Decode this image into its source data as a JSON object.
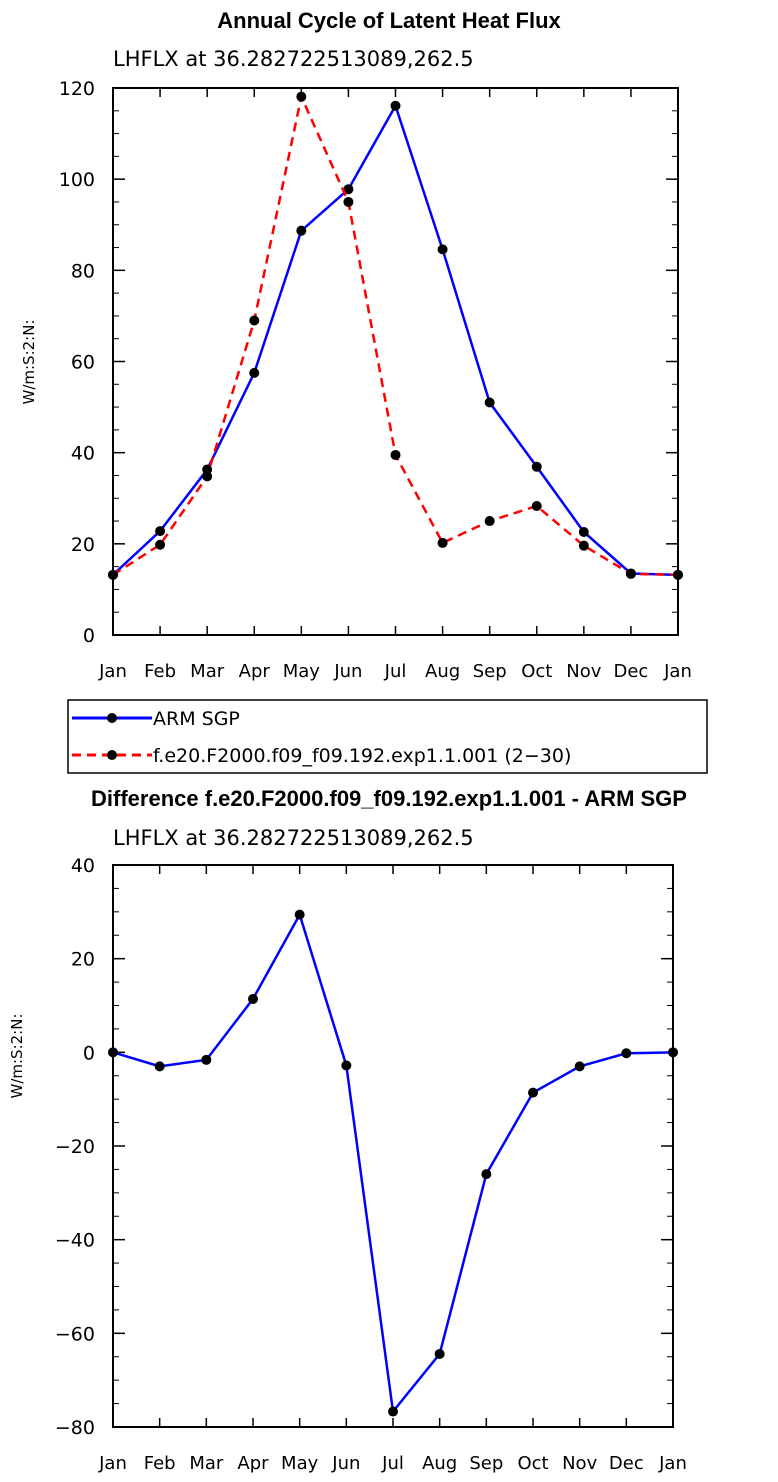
{
  "chart_data": [
    {
      "type": "line",
      "title": "Annual Cycle of Latent Heat Flux",
      "subtitle": "LHFLX at 36.282722513089,262.5",
      "xlabel": "",
      "ylabel": "W/m:S:2:N:",
      "categories": [
        "Jan",
        "Feb",
        "Mar",
        "Apr",
        "May",
        "Jun",
        "Jul",
        "Aug",
        "Sep",
        "Oct",
        "Nov",
        "Dec",
        "Jan"
      ],
      "ylim": [
        0,
        120
      ],
      "yticks": [
        0,
        20,
        40,
        60,
        80,
        100,
        120
      ],
      "legend_position": "bottom-left",
      "series": [
        {
          "name": "ARM SGP",
          "color": "#0000ff",
          "dash": "solid",
          "values": [
            13.2,
            22.8,
            36.3,
            57.5,
            88.7,
            97.8,
            116.1,
            84.6,
            51.0,
            36.9,
            22.6,
            13.5,
            13.2
          ]
        },
        {
          "name": "f.e20.F2000.f09_f09.192.exp1.1.001 (2−30)",
          "color": "#ff0000",
          "dash": "dashed",
          "values": [
            13.2,
            19.8,
            34.8,
            69.0,
            118.1,
            95.0,
            39.5,
            20.2,
            25.0,
            28.3,
            19.6,
            13.4,
            13.2
          ]
        }
      ]
    },
    {
      "type": "line",
      "title": "Difference f.e20.F2000.f09_f09.192.exp1.1.001 - ARM SGP",
      "subtitle": "LHFLX at 36.282722513089,262.5",
      "xlabel": "",
      "ylabel": "W/m:S:2:N:",
      "categories": [
        "Jan",
        "Feb",
        "Mar",
        "Apr",
        "May",
        "Jun",
        "Jul",
        "Aug",
        "Sep",
        "Oct",
        "Nov",
        "Dec",
        "Jan"
      ],
      "ylim": [
        -80,
        40
      ],
      "yticks": [
        -80,
        -60,
        -40,
        -20,
        0,
        20,
        40
      ],
      "series": [
        {
          "name": "",
          "color": "#0000ff",
          "dash": "solid",
          "values": [
            0.0,
            -3.0,
            -1.6,
            11.4,
            29.4,
            -2.8,
            -76.7,
            -64.4,
            -26.0,
            -8.6,
            -3.0,
            -0.2,
            0.0
          ]
        }
      ]
    }
  ]
}
